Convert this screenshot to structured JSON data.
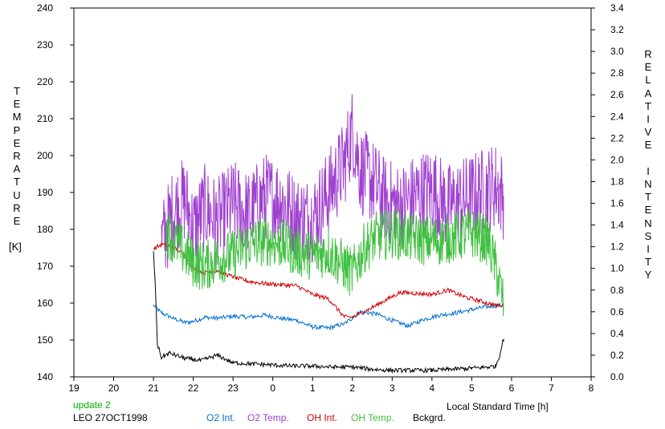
{
  "chart_data": {
    "type": "line",
    "y_left_label": "TEMPERATURE",
    "y_left_unit": "[K]",
    "y_right_label": "RELATIVE INTENSITY",
    "x_label": "Local Standard Time [h]",
    "x_ticks": [
      "19",
      "20",
      "21",
      "22",
      "23",
      "0",
      "1",
      "2",
      "3",
      "4",
      "5",
      "6",
      "7",
      "8"
    ],
    "y_left_ticks": [
      "140",
      "150",
      "160",
      "170",
      "180",
      "190",
      "200",
      "210",
      "220",
      "230",
      "240"
    ],
    "y_right_ticks": [
      "0.0",
      "0.2",
      "0.4",
      "0.6",
      "0.8",
      "1.0",
      "1.2",
      "1.4",
      "1.6",
      "1.8",
      "2.0",
      "2.2",
      "2.4",
      "2.6",
      "2.8",
      "3.0",
      "3.2",
      "3.4"
    ],
    "x_range": [
      19,
      32
    ],
    "y_left_range": [
      140,
      240
    ],
    "y_right_range": [
      0,
      3.4
    ],
    "grid": false,
    "series": [
      {
        "name": "O2 Int.",
        "color": "#0070d0",
        "axis": "right",
        "x": [
          21.0,
          21.2,
          21.5,
          21.8,
          22.0,
          22.3,
          22.6,
          23.0,
          23.4,
          23.8,
          24.2,
          24.6,
          25.0,
          25.4,
          25.8,
          26.2,
          26.6,
          27.0,
          27.4,
          27.8,
          28.2,
          28.6,
          29.0,
          29.4,
          29.8
        ],
        "y": [
          0.66,
          0.59,
          0.54,
          0.5,
          0.51,
          0.55,
          0.54,
          0.56,
          0.55,
          0.57,
          0.54,
          0.52,
          0.46,
          0.45,
          0.49,
          0.6,
          0.58,
          0.52,
          0.47,
          0.53,
          0.57,
          0.59,
          0.62,
          0.65,
          0.66
        ]
      },
      {
        "name": "O2 Temp.",
        "color": "#a040d0",
        "axis": "left",
        "x": [
          21.2,
          21.5,
          21.8,
          22.0,
          22.3,
          22.6,
          23.0,
          23.4,
          23.8,
          24.2,
          24.6,
          25.0,
          25.4,
          25.8,
          26.0,
          26.2,
          26.5,
          26.8,
          27.2,
          27.6,
          28.0,
          28.4,
          28.8,
          29.2,
          29.6,
          29.8
        ],
        "y": [
          176,
          185,
          188,
          180,
          186,
          182,
          187,
          184,
          189,
          188,
          183,
          183,
          190,
          198,
          207,
          196,
          193,
          188,
          186,
          189,
          191,
          186,
          188,
          190,
          192,
          189
        ]
      },
      {
        "name": "OH Int.",
        "color": "#d00000",
        "axis": "right",
        "x": [
          21.0,
          21.2,
          21.5,
          21.8,
          22.0,
          22.3,
          22.6,
          23.0,
          23.4,
          23.8,
          24.2,
          24.6,
          25.0,
          25.4,
          25.8,
          26.0,
          26.4,
          26.8,
          27.2,
          27.6,
          28.0,
          28.4,
          28.8,
          29.2,
          29.6,
          29.8
        ],
        "y": [
          1.18,
          1.22,
          1.2,
          1.12,
          1.0,
          0.96,
          0.98,
          0.92,
          0.88,
          0.86,
          0.85,
          0.84,
          0.76,
          0.72,
          0.55,
          0.55,
          0.62,
          0.7,
          0.78,
          0.77,
          0.76,
          0.8,
          0.74,
          0.7,
          0.66,
          0.66
        ]
      },
      {
        "name": "OH Temp.",
        "color": "#40c040",
        "axis": "left",
        "x": [
          21.3,
          21.6,
          22.0,
          22.3,
          22.6,
          23.0,
          23.4,
          23.8,
          24.2,
          24.6,
          25.0,
          25.4,
          25.8,
          26.0,
          26.3,
          26.6,
          27.0,
          27.4,
          27.8,
          28.2,
          28.6,
          29.0,
          29.4,
          29.6,
          29.8
        ],
        "y": [
          180,
          176,
          171,
          170,
          172,
          173,
          176,
          177,
          176,
          174,
          173,
          174,
          170,
          168,
          175,
          178,
          179,
          178,
          177,
          177,
          178,
          179,
          177,
          170,
          160
        ]
      },
      {
        "name": "Bckgrd.",
        "color": "#000000",
        "axis": "right",
        "x": [
          21.0,
          21.05,
          21.1,
          21.2,
          21.4,
          21.8,
          22.2,
          22.6,
          23.0,
          23.5,
          24.0,
          24.5,
          25.0,
          25.5,
          26.0,
          26.5,
          27.0,
          27.5,
          28.0,
          28.5,
          29.0,
          29.4,
          29.6,
          29.7,
          29.8
        ],
        "y": [
          1.15,
          0.8,
          0.3,
          0.18,
          0.22,
          0.17,
          0.15,
          0.2,
          0.13,
          0.12,
          0.11,
          0.1,
          0.1,
          0.09,
          0.09,
          0.07,
          0.06,
          0.06,
          0.06,
          0.07,
          0.08,
          0.09,
          0.1,
          0.2,
          0.35
        ]
      }
    ]
  },
  "annotations": {
    "update": "update 2",
    "station": "LEO 27OCT1998"
  },
  "legend": [
    {
      "label": "O2 Int.",
      "color": "#0070d0"
    },
    {
      "label": "O2 Temp.",
      "color": "#a040d0"
    },
    {
      "label": "OH Int.",
      "color": "#d00000"
    },
    {
      "label": "OH Temp.",
      "color": "#40c040"
    },
    {
      "label": "Bckgrd.",
      "color": "#000000"
    }
  ],
  "colors": {
    "update_text": "#00b000",
    "axis": "#000000"
  }
}
